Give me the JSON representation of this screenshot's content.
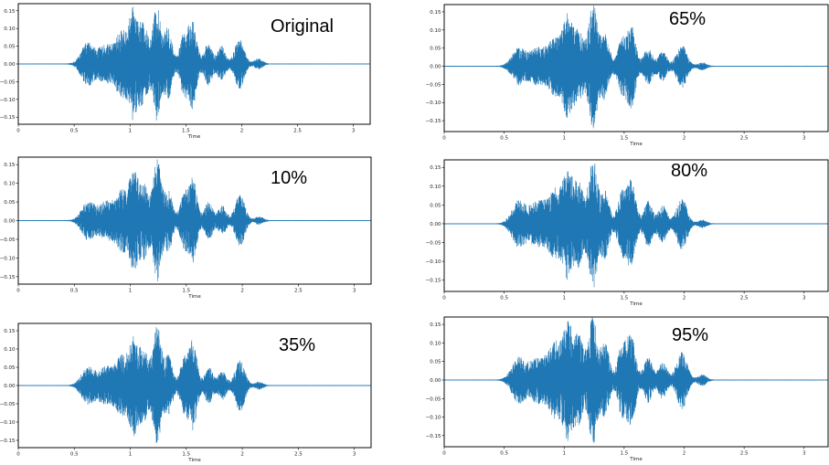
{
  "colors": {
    "waveform": "#1f77b4"
  },
  "chart_data": [
    {
      "type": "line",
      "annotation": "Original",
      "xlabel": "Time",
      "xlim": [
        0,
        3.15
      ],
      "ylim": [
        -0.17,
        0.17
      ],
      "xticks": [
        0,
        0.5,
        1,
        1.5,
        2,
        2.5,
        3
      ],
      "xtick_labels": [
        "0",
        "0.5",
        "1",
        "1.5",
        "2",
        "2.5",
        "3"
      ],
      "yticks": [
        0.15,
        0.1,
        0.05,
        0.0,
        -0.05,
        -0.1,
        -0.15
      ],
      "ytick_labels": [
        "0.15",
        "0.10",
        "0.05",
        "0.00",
        "−0.05",
        "−0.10",
        "−0.15"
      ],
      "bursts": [
        {
          "center": 0.62,
          "width": 0.08,
          "amp": 0.06
        },
        {
          "center": 0.78,
          "width": 0.09,
          "amp": 0.05
        },
        {
          "center": 0.93,
          "width": 0.08,
          "amp": 0.09
        },
        {
          "center": 1.03,
          "width": 0.05,
          "amp": 0.13
        },
        {
          "center": 1.12,
          "width": 0.06,
          "amp": 0.11
        },
        {
          "center": 1.24,
          "width": 0.05,
          "amp": 0.16
        },
        {
          "center": 1.34,
          "width": 0.05,
          "amp": 0.1
        },
        {
          "center": 1.48,
          "width": 0.05,
          "amp": 0.08
        },
        {
          "center": 1.56,
          "width": 0.05,
          "amp": 0.12
        },
        {
          "center": 1.7,
          "width": 0.05,
          "amp": 0.06
        },
        {
          "center": 1.82,
          "width": 0.05,
          "amp": 0.05
        },
        {
          "center": 1.98,
          "width": 0.06,
          "amp": 0.07
        },
        {
          "center": 2.15,
          "width": 0.05,
          "amp": 0.015
        }
      ]
    },
    {
      "type": "line",
      "annotation": "10%",
      "xlabel": "Time",
      "xlim": [
        0,
        3.15
      ],
      "ylim": [
        -0.17,
        0.17
      ],
      "xticks": [
        0,
        0.5,
        1,
        1.5,
        2,
        2.5,
        3
      ],
      "xtick_labels": [
        "0",
        "0.5",
        "1",
        "1.5",
        "2",
        "2.5",
        "3"
      ],
      "yticks": [
        0.15,
        0.1,
        0.05,
        0.0,
        -0.05,
        -0.1,
        -0.15
      ],
      "ytick_labels": [
        "0.15",
        "0.10",
        "0.05",
        "0.00",
        "−0.05",
        "−0.10",
        "−0.15"
      ],
      "bursts": [
        {
          "center": 0.62,
          "width": 0.08,
          "amp": 0.05
        },
        {
          "center": 0.78,
          "width": 0.09,
          "amp": 0.05
        },
        {
          "center": 0.93,
          "width": 0.08,
          "amp": 0.08
        },
        {
          "center": 1.03,
          "width": 0.05,
          "amp": 0.11
        },
        {
          "center": 1.12,
          "width": 0.06,
          "amp": 0.1
        },
        {
          "center": 1.24,
          "width": 0.05,
          "amp": 0.16
        },
        {
          "center": 1.34,
          "width": 0.05,
          "amp": 0.08
        },
        {
          "center": 1.48,
          "width": 0.05,
          "amp": 0.07
        },
        {
          "center": 1.56,
          "width": 0.05,
          "amp": 0.11
        },
        {
          "center": 1.7,
          "width": 0.05,
          "amp": 0.05
        },
        {
          "center": 1.82,
          "width": 0.05,
          "amp": 0.04
        },
        {
          "center": 1.98,
          "width": 0.06,
          "amp": 0.07
        },
        {
          "center": 2.15,
          "width": 0.05,
          "amp": 0.01
        }
      ]
    },
    {
      "type": "line",
      "annotation": "35%",
      "xlabel": "Time",
      "xlim": [
        0,
        3.15
      ],
      "ylim": [
        -0.17,
        0.17
      ],
      "xticks": [
        0,
        0.5,
        1,
        1.5,
        2,
        2.5,
        3
      ],
      "xtick_labels": [
        "0",
        "0.5",
        "1",
        "1.5",
        "2",
        "2.5",
        "3"
      ],
      "yticks": [
        0.15,
        0.1,
        0.05,
        0.0,
        -0.05,
        -0.1,
        -0.15
      ],
      "ytick_labels": [
        "0.15",
        "0.10",
        "0.05",
        "0.00",
        "−0.05",
        "−0.10",
        "−0.15"
      ],
      "bursts": [
        {
          "center": 0.62,
          "width": 0.08,
          "amp": 0.05
        },
        {
          "center": 0.78,
          "width": 0.09,
          "amp": 0.05
        },
        {
          "center": 0.93,
          "width": 0.08,
          "amp": 0.08
        },
        {
          "center": 1.03,
          "width": 0.05,
          "amp": 0.11
        },
        {
          "center": 1.12,
          "width": 0.06,
          "amp": 0.1
        },
        {
          "center": 1.24,
          "width": 0.05,
          "amp": 0.16
        },
        {
          "center": 1.34,
          "width": 0.05,
          "amp": 0.08
        },
        {
          "center": 1.48,
          "width": 0.05,
          "amp": 0.07
        },
        {
          "center": 1.56,
          "width": 0.05,
          "amp": 0.12
        },
        {
          "center": 1.7,
          "width": 0.05,
          "amp": 0.05
        },
        {
          "center": 1.82,
          "width": 0.05,
          "amp": 0.04
        },
        {
          "center": 1.98,
          "width": 0.06,
          "amp": 0.07
        },
        {
          "center": 2.15,
          "width": 0.05,
          "amp": 0.01
        }
      ]
    },
    {
      "type": "line",
      "annotation": "65%",
      "xlabel": "Time",
      "xlim": [
        0,
        3.2
      ],
      "ylim": [
        -0.18,
        0.17
      ],
      "xticks": [
        0,
        0.5,
        1,
        1.5,
        2,
        2.5,
        3
      ],
      "xtick_labels": [
        "0",
        "0.5",
        "1",
        "1.5",
        "2",
        "2.5",
        "3"
      ],
      "yticks": [
        0.15,
        0.1,
        0.05,
        0.0,
        -0.05,
        -0.1,
        -0.15
      ],
      "ytick_labels": [
        "0.15",
        "0.10",
        "0.05",
        "0.00",
        "−0.05",
        "−0.10",
        "−0.15"
      ],
      "bursts": [
        {
          "center": 0.62,
          "width": 0.08,
          "amp": 0.05
        },
        {
          "center": 0.78,
          "width": 0.09,
          "amp": 0.05
        },
        {
          "center": 0.93,
          "width": 0.08,
          "amp": 0.08
        },
        {
          "center": 1.03,
          "width": 0.05,
          "amp": 0.12
        },
        {
          "center": 1.12,
          "width": 0.06,
          "amp": 0.1
        },
        {
          "center": 1.24,
          "width": 0.05,
          "amp": 0.17
        },
        {
          "center": 1.34,
          "width": 0.05,
          "amp": 0.09
        },
        {
          "center": 1.48,
          "width": 0.05,
          "amp": 0.07
        },
        {
          "center": 1.56,
          "width": 0.05,
          "amp": 0.11
        },
        {
          "center": 1.7,
          "width": 0.05,
          "amp": 0.05
        },
        {
          "center": 1.82,
          "width": 0.05,
          "amp": 0.04
        },
        {
          "center": 1.98,
          "width": 0.06,
          "amp": 0.06
        },
        {
          "center": 2.15,
          "width": 0.05,
          "amp": 0.01
        }
      ]
    },
    {
      "type": "line",
      "annotation": "80%",
      "xlabel": "Time",
      "xlim": [
        0,
        3.2
      ],
      "ylim": [
        -0.18,
        0.17
      ],
      "xticks": [
        0,
        0.5,
        1,
        1.5,
        2,
        2.5,
        3
      ],
      "xtick_labels": [
        "0",
        "0.5",
        "1",
        "1.5",
        "2",
        "2.5",
        "3"
      ],
      "yticks": [
        0.15,
        0.1,
        0.05,
        0.0,
        -0.05,
        -0.1,
        -0.15
      ],
      "ytick_labels": [
        "0.15",
        "0.10",
        "0.05",
        "0.00",
        "−0.05",
        "−0.10",
        "−0.15"
      ],
      "bursts": [
        {
          "center": 0.62,
          "width": 0.08,
          "amp": 0.06
        },
        {
          "center": 0.78,
          "width": 0.09,
          "amp": 0.06
        },
        {
          "center": 0.93,
          "width": 0.08,
          "amp": 0.09
        },
        {
          "center": 1.03,
          "width": 0.05,
          "amp": 0.12
        },
        {
          "center": 1.12,
          "width": 0.06,
          "amp": 0.11
        },
        {
          "center": 1.24,
          "width": 0.05,
          "amp": 0.17
        },
        {
          "center": 1.34,
          "width": 0.05,
          "amp": 0.09
        },
        {
          "center": 1.48,
          "width": 0.05,
          "amp": 0.08
        },
        {
          "center": 1.56,
          "width": 0.05,
          "amp": 0.11
        },
        {
          "center": 1.7,
          "width": 0.05,
          "amp": 0.06
        },
        {
          "center": 1.82,
          "width": 0.05,
          "amp": 0.05
        },
        {
          "center": 1.98,
          "width": 0.06,
          "amp": 0.07
        },
        {
          "center": 2.15,
          "width": 0.05,
          "amp": 0.01
        }
      ]
    },
    {
      "type": "line",
      "annotation": "95%",
      "xlabel": "Time",
      "xlim": [
        0,
        3.2
      ],
      "ylim": [
        -0.18,
        0.17
      ],
      "xticks": [
        0,
        0.5,
        1,
        1.5,
        2,
        2.5,
        3
      ],
      "xtick_labels": [
        "0",
        "0.5",
        "1",
        "1.5",
        "2",
        "2.5",
        "3"
      ],
      "yticks": [
        0.15,
        0.1,
        0.05,
        0.0,
        -0.05,
        -0.1,
        -0.15
      ],
      "ytick_labels": [
        "0.15",
        "0.10",
        "0.05",
        "0.00",
        "−0.05",
        "−0.10",
        "−0.15"
      ],
      "bursts": [
        {
          "center": 0.62,
          "width": 0.08,
          "amp": 0.06
        },
        {
          "center": 0.78,
          "width": 0.09,
          "amp": 0.06
        },
        {
          "center": 0.93,
          "width": 0.08,
          "amp": 0.1
        },
        {
          "center": 1.03,
          "width": 0.05,
          "amp": 0.13
        },
        {
          "center": 1.12,
          "width": 0.06,
          "amp": 0.12
        },
        {
          "center": 1.24,
          "width": 0.05,
          "amp": 0.17
        },
        {
          "center": 1.34,
          "width": 0.05,
          "amp": 0.1
        },
        {
          "center": 1.48,
          "width": 0.05,
          "amp": 0.09
        },
        {
          "center": 1.56,
          "width": 0.05,
          "amp": 0.12
        },
        {
          "center": 1.7,
          "width": 0.05,
          "amp": 0.06
        },
        {
          "center": 1.82,
          "width": 0.05,
          "amp": 0.05
        },
        {
          "center": 1.98,
          "width": 0.06,
          "amp": 0.08
        },
        {
          "center": 2.15,
          "width": 0.05,
          "amp": 0.015
        }
      ]
    }
  ]
}
